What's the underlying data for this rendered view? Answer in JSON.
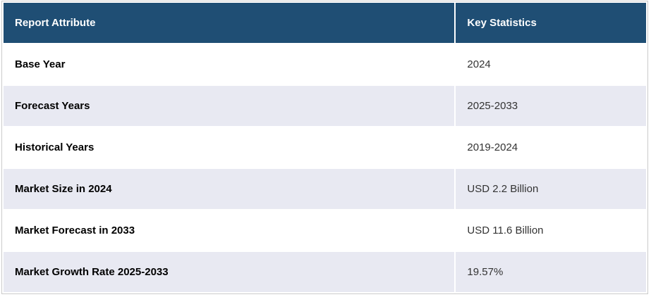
{
  "table": {
    "columns": [
      {
        "label": "Report Attribute"
      },
      {
        "label": "Key Statistics"
      }
    ],
    "rows": [
      {
        "attribute": "Base Year",
        "value": "2024"
      },
      {
        "attribute": "Forecast Years",
        "value": "2025-2033"
      },
      {
        "attribute": "Historical Years",
        "value": "2019-2024"
      },
      {
        "attribute": "Market Size in 2024",
        "value": "USD 2.2 Billion"
      },
      {
        "attribute": "Market Forecast in 2033",
        "value": "USD 11.6 Billion"
      },
      {
        "attribute": "Market Growth Rate 2025-2033",
        "value": "19.57%"
      }
    ],
    "colors": {
      "header_bg": "#1F4E74",
      "header_text": "#FFFFFF",
      "row_bg": "#FFFFFF",
      "row_alt_bg": "#E8E9F2",
      "attribute_text": "#000000",
      "value_text": "#333333",
      "outer_border": "#CBCBCB",
      "cell_gap": "#FFFFFF"
    }
  }
}
